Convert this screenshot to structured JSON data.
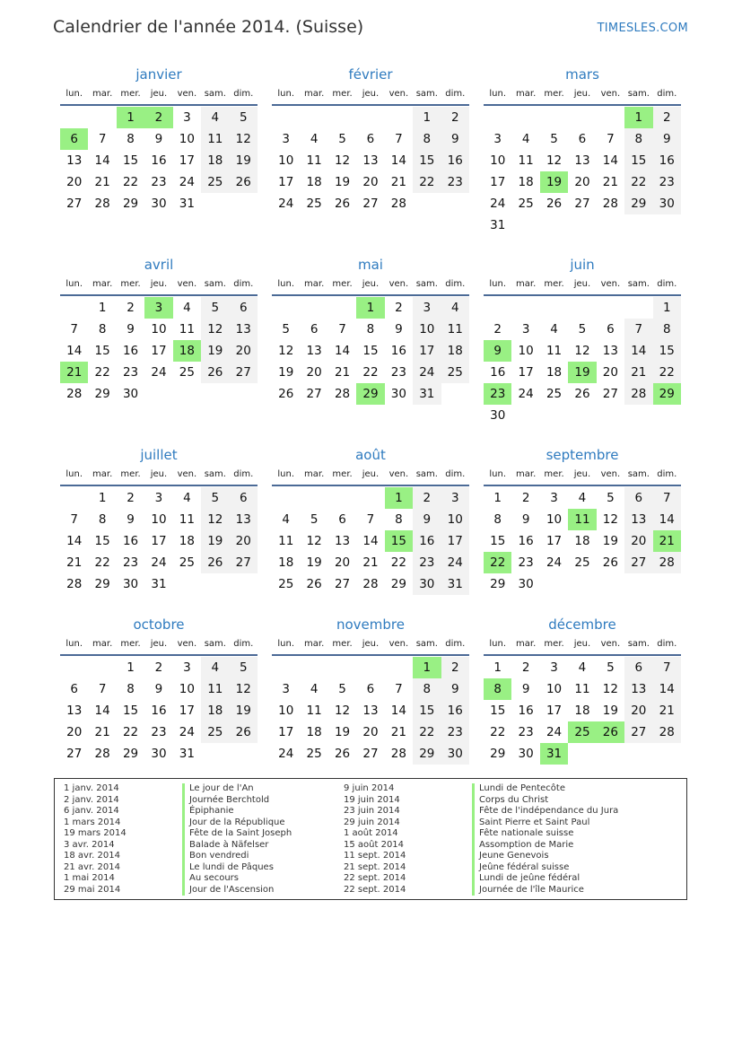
{
  "header": {
    "title": "Calendrier de l'année 2014. (Suisse)",
    "brand": "TIMESLES.COM"
  },
  "year": 2014,
  "weekdays": [
    "lun.",
    "mar.",
    "mer.",
    "jeu.",
    "ven.",
    "sam.",
    "dim."
  ],
  "months": [
    {
      "name": "janvier",
      "holidays": [
        1,
        2,
        6
      ]
    },
    {
      "name": "février",
      "holidays": []
    },
    {
      "name": "mars",
      "holidays": [
        1,
        19
      ]
    },
    {
      "name": "avril",
      "holidays": [
        3,
        18,
        21
      ]
    },
    {
      "name": "mai",
      "holidays": [
        1,
        29
      ]
    },
    {
      "name": "juin",
      "holidays": [
        9,
        19,
        23,
        29
      ]
    },
    {
      "name": "juillet",
      "holidays": []
    },
    {
      "name": "août",
      "holidays": [
        1,
        15
      ]
    },
    {
      "name": "septembre",
      "holidays": [
        11,
        21,
        22
      ]
    },
    {
      "name": "octobre",
      "holidays": []
    },
    {
      "name": "novembre",
      "holidays": [
        1
      ]
    },
    {
      "name": "décembre",
      "holidays": [
        8,
        25,
        26,
        31
      ]
    }
  ],
  "colors": {
    "holiday": "#99f084",
    "weekend": "#f2f2f2",
    "accent": "#2f7bbf"
  },
  "legend": [
    {
      "date": "1 janv. 2014",
      "name": "Le jour de l'An"
    },
    {
      "date": "2 janv. 2014",
      "name": "Journée Berchtold"
    },
    {
      "date": "6 janv. 2014",
      "name": "Épiphanie"
    },
    {
      "date": "1 mars 2014",
      "name": "Jour de la République"
    },
    {
      "date": "19 mars 2014",
      "name": "Fête de la Saint Joseph"
    },
    {
      "date": "3 avr. 2014",
      "name": "Balade à Näfelser"
    },
    {
      "date": "18 avr. 2014",
      "name": "Bon vendredi"
    },
    {
      "date": "21 avr. 2014",
      "name": "Le lundi de Pâques"
    },
    {
      "date": "1 mai 2014",
      "name": "Au secours"
    },
    {
      "date": "29 mai 2014",
      "name": "Jour de l'Ascension"
    },
    {
      "date": "9 juin 2014",
      "name": "Lundi de Pentecôte"
    },
    {
      "date": "19 juin 2014",
      "name": "Corps du Christ"
    },
    {
      "date": "23 juin 2014",
      "name": "Fête de l'indépendance du Jura"
    },
    {
      "date": "29 juin 2014",
      "name": "Saint Pierre et Saint Paul"
    },
    {
      "date": "1 août 2014",
      "name": "Fête nationale suisse"
    },
    {
      "date": "15 août 2014",
      "name": "Assomption de Marie"
    },
    {
      "date": "11 sept. 2014",
      "name": "Jeune Genevois"
    },
    {
      "date": "21 sept. 2014",
      "name": "Jeûne fédéral suisse"
    },
    {
      "date": "22 sept. 2014",
      "name": "Lundi de jeûne fédéral"
    },
    {
      "date": "22 sept. 2014",
      "name": "Journée de l'île Maurice"
    }
  ]
}
